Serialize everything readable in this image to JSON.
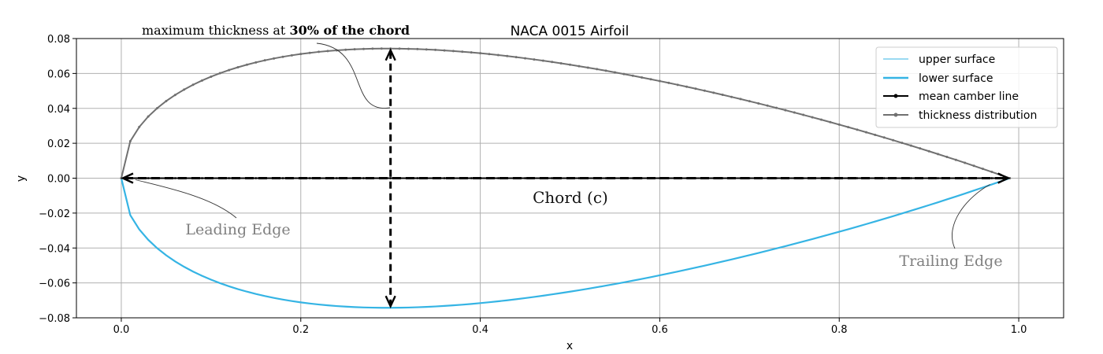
{
  "chart_data": {
    "type": "line",
    "title": "NACA 0015 Airfoil",
    "xlabel": "x",
    "ylabel": "y",
    "xlim": [
      -0.05,
      1.05
    ],
    "ylim": [
      -0.08,
      0.08
    ],
    "x_ticks": [
      0.0,
      0.2,
      0.4,
      0.6,
      0.8,
      1.0
    ],
    "x_tick_labels": [
      "0.0",
      "0.2",
      "0.4",
      "0.6",
      "0.8",
      "1.0"
    ],
    "y_ticks": [
      -0.08,
      -0.06,
      -0.04,
      -0.02,
      0.0,
      0.02,
      0.04,
      0.06,
      0.08
    ],
    "y_tick_labels": [
      "−0.08",
      "−0.06",
      "−0.04",
      "−0.02",
      "0.00",
      "0.02",
      "0.04",
      "0.06",
      "0.08"
    ],
    "grid": true,
    "legend_position": "top-right",
    "naca": {
      "thickness": 0.15,
      "chord_start": 0.0,
      "chord_end": 0.99,
      "point_count": 100
    },
    "series": [
      {
        "name": "upper surface",
        "color": "#35b4e4",
        "style": "thin-line"
      },
      {
        "name": "lower surface",
        "color": "#35b4e4",
        "style": "thick-line"
      },
      {
        "name": "mean camber line",
        "color": "#000000",
        "style": "line-with-dot-markers"
      },
      {
        "name": "thickness distribution",
        "color": "#707070",
        "style": "line-with-dot-markers"
      }
    ],
    "annotations": {
      "max_thickness_prefix": "maximum thickness at ",
      "max_thickness_bold": "30% of the chord",
      "max_thickness_x": 0.3,
      "chord": "Chord (c)",
      "leading_edge": "Leading Edge",
      "trailing_edge": "Trailing Edge"
    }
  }
}
